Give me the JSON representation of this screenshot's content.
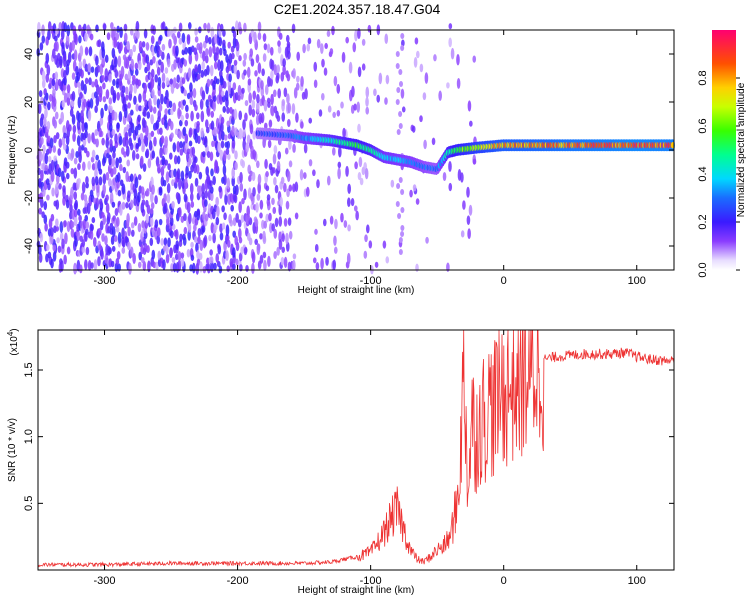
{
  "title": "C2E1.2024.357.18.47.G04",
  "chart_data": [
    {
      "type": "heatmap",
      "xlabel": "Height of straight line (km)",
      "ylabel": "Frequency (Hz)",
      "xlim": [
        -350,
        128
      ],
      "ylim": [
        -50,
        50
      ],
      "x_ticks": [
        -300,
        -200,
        -100,
        0,
        100
      ],
      "y_ticks": [
        -40,
        -20,
        0,
        20,
        40
      ],
      "colorbar": {
        "label": "Normalized spectral amplitude",
        "range": [
          0,
          1
        ],
        "ticks": [
          0.0,
          0.2,
          0.4,
          0.6,
          0.8
        ],
        "tick_labels": [
          "0.0",
          "0.2",
          "0.4",
          "0.6",
          "0.8"
        ]
      },
      "ridge": {
        "x": [
          -185,
          -160,
          -150,
          -130,
          -110,
          -100,
          -90,
          -80,
          -70,
          -60,
          -50,
          -42,
          -35,
          -20,
          0,
          50,
          100,
          128
        ],
        "y": [
          7,
          6,
          5,
          4,
          2,
          0,
          -3,
          -4,
          -5,
          -7,
          -8,
          -1,
          0,
          1,
          2,
          2,
          2,
          2
        ],
        "amplitude": [
          0.25,
          0.3,
          0.35,
          0.45,
          0.55,
          0.5,
          0.4,
          0.38,
          0.35,
          0.32,
          0.3,
          0.5,
          0.6,
          0.7,
          0.82,
          0.88,
          0.92,
          0.9
        ]
      }
    },
    {
      "type": "line",
      "xlabel": "Height of straight line (km)",
      "ylabel": "SNR (10 * v/v)",
      "y_scale_label": "(x10",
      "y_scale_exp": "4",
      "y_scale_close": ")",
      "xlim": [
        -350,
        128
      ],
      "ylim": [
        0,
        1.8
      ],
      "x_ticks": [
        -300,
        -200,
        -100,
        0,
        100
      ],
      "y_ticks": [
        0.5,
        1.0,
        1.5
      ],
      "y_tick_labels": [
        "0.5",
        "1.0",
        "1.5"
      ],
      "series": [
        {
          "color": "#ee3333",
          "envelope_x": [
            -350,
            -300,
            -250,
            -200,
            -150,
            -130,
            -110,
            -100,
            -95,
            -90,
            -85,
            -80,
            -75,
            -70,
            -65,
            -60,
            -55,
            -50,
            -45,
            -40,
            -38,
            -35,
            -33,
            -31,
            -30,
            -28,
            -27,
            -25,
            -24,
            -22,
            -20,
            -18,
            -15,
            -12,
            -10,
            -8,
            -5,
            -3,
            0,
            5,
            10,
            15,
            20,
            25,
            30,
            40,
            50,
            60,
            70,
            80,
            90,
            95,
            100,
            110,
            120,
            128
          ],
          "envelope_y": [
            0.04,
            0.04,
            0.05,
            0.05,
            0.05,
            0.06,
            0.1,
            0.13,
            0.2,
            0.28,
            0.38,
            0.45,
            0.3,
            0.15,
            0.08,
            0.06,
            0.1,
            0.15,
            0.18,
            0.25,
            0.35,
            0.5,
            0.8,
            1.2,
            1.5,
            1.0,
            0.6,
            0.9,
            1.2,
            1.0,
            1.05,
            1.1,
            1.15,
            1.2,
            1.25,
            1.2,
            1.28,
            1.3,
            1.35,
            1.38,
            1.42,
            1.46,
            1.5,
            1.55,
            1.58,
            1.6,
            1.61,
            1.62,
            1.62,
            1.62,
            1.63,
            1.62,
            1.6,
            1.58,
            1.57,
            1.57
          ]
        }
      ]
    }
  ]
}
